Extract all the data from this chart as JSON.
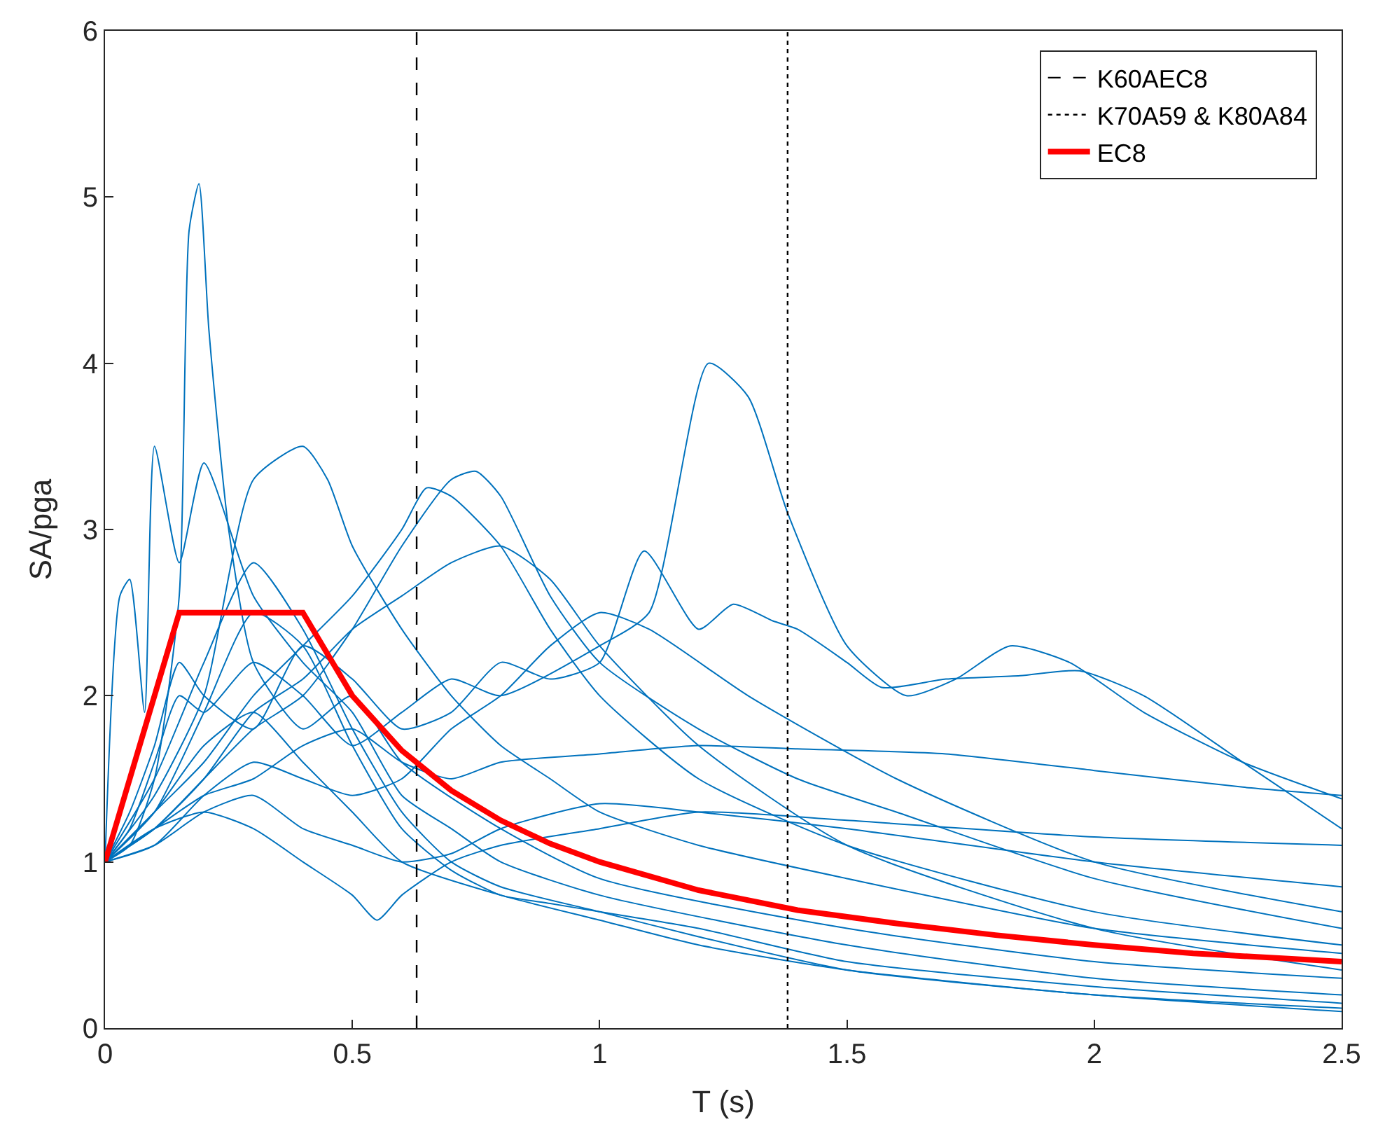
{
  "chart_data": {
    "type": "line",
    "xlabel": "T (s)",
    "ylabel": "SA/pga",
    "xlim": [
      0,
      2.5
    ],
    "ylim": [
      0,
      6
    ],
    "xticks": [
      0,
      {
        "value": 0.5,
        "label": "0.5"
      },
      1,
      {
        "value": 1.5,
        "label": "1.5"
      },
      2,
      {
        "value": 2.5,
        "label": "2.5"
      }
    ],
    "yticks": [
      0,
      1,
      2,
      3,
      4,
      5,
      6
    ],
    "legend": "top right",
    "marker": "none",
    "line_style": "solid",
    "series": [
      {
        "color": "#0072bd",
        "x": [
          0,
          0.05,
          0.1,
          0.15,
          0.2,
          0.3,
          0.4,
          0.5,
          0.6,
          0.7,
          0.8,
          1.0,
          1.1,
          1.22,
          1.3,
          1.38,
          1.5,
          1.62,
          1.72,
          1.83,
          1.95,
          2.1,
          2.3,
          2.5
        ],
        "values": [
          1,
          1.2,
          1.6,
          2.0,
          1.9,
          2.2,
          2.0,
          1.7,
          1.9,
          2.1,
          2.0,
          2.3,
          2.5,
          4.0,
          3.8,
          3.1,
          2.3,
          2.0,
          2.1,
          2.3,
          2.2,
          1.9,
          1.6,
          1.38
        ]
      },
      {
        "color": "#0072bd",
        "x": [
          0,
          0.05,
          0.1,
          0.15,
          0.2,
          0.3,
          0.4,
          0.5,
          0.6,
          0.7,
          0.8,
          0.9,
          1.0,
          1.09,
          1.2,
          1.27,
          1.35,
          1.4,
          1.5,
          1.57,
          1.7,
          1.85,
          1.97,
          2.1,
          2.3,
          2.5
        ],
        "values": [
          1,
          1.3,
          1.7,
          2.2,
          2.0,
          1.8,
          2.3,
          2.1,
          1.8,
          1.9,
          2.2,
          2.1,
          2.2,
          2.87,
          2.4,
          2.55,
          2.45,
          2.4,
          2.2,
          2.05,
          2.1,
          2.12,
          2.15,
          2.0,
          1.6,
          1.2
        ]
      },
      {
        "color": "#0072bd",
        "x": [
          0,
          0.05,
          0.1,
          0.15,
          0.17,
          0.19,
          0.21,
          0.25,
          0.3,
          0.4,
          0.5,
          0.6,
          0.8,
          1.0,
          1.5,
          2.0,
          2.5
        ],
        "values": [
          1,
          1.1,
          1.5,
          2.6,
          4.8,
          5.08,
          4.2,
          3.0,
          2.2,
          1.8,
          2.0,
          1.6,
          1.2,
          0.9,
          0.6,
          0.4,
          0.3
        ]
      },
      {
        "color": "#0072bd",
        "x": [
          0,
          0.03,
          0.05,
          0.08,
          0.1,
          0.15,
          0.2,
          0.3,
          0.4,
          0.5,
          0.6,
          0.7,
          0.8,
          1.0,
          1.5,
          2.0,
          2.5
        ],
        "values": [
          1,
          2.6,
          2.7,
          1.9,
          3.5,
          2.8,
          3.4,
          2.6,
          2.2,
          1.9,
          1.4,
          1.2,
          1.0,
          0.8,
          0.5,
          0.3,
          0.2
        ]
      },
      {
        "color": "#0072bd",
        "x": [
          0,
          0.1,
          0.2,
          0.3,
          0.4,
          0.45,
          0.5,
          0.6,
          0.7,
          0.8,
          0.9,
          1.0,
          1.2,
          1.5,
          2.0,
          2.5
        ],
        "values": [
          1,
          1.4,
          2.0,
          3.3,
          3.5,
          3.3,
          2.9,
          2.4,
          2.0,
          1.7,
          1.5,
          1.3,
          1.1,
          0.9,
          0.6,
          0.45
        ]
      },
      {
        "color": "#0072bd",
        "x": [
          0,
          0.1,
          0.2,
          0.3,
          0.4,
          0.5,
          0.6,
          0.7,
          0.75,
          0.8,
          0.9,
          1.0,
          1.2,
          1.4,
          1.6,
          2.0,
          2.5
        ],
        "values": [
          1,
          1.2,
          1.5,
          1.8,
          2.0,
          2.4,
          2.9,
          3.3,
          3.35,
          3.2,
          2.6,
          2.2,
          1.8,
          1.5,
          1.3,
          0.9,
          0.6
        ]
      },
      {
        "color": "#0072bd",
        "x": [
          0,
          0.1,
          0.2,
          0.3,
          0.4,
          0.5,
          0.6,
          0.65,
          0.7,
          0.8,
          0.9,
          1.0,
          1.2,
          1.5,
          2.0,
          2.5
        ],
        "values": [
          1,
          1.3,
          1.6,
          2.0,
          2.3,
          2.6,
          3.0,
          3.25,
          3.2,
          2.9,
          2.4,
          2.0,
          1.5,
          1.1,
          0.7,
          0.5
        ]
      },
      {
        "color": "#0072bd",
        "x": [
          0,
          0.1,
          0.2,
          0.3,
          0.4,
          0.5,
          0.6,
          0.7,
          0.8,
          1.0,
          1.2,
          1.4,
          1.7,
          2.0,
          2.3,
          2.5
        ],
        "values": [
          1,
          1.2,
          1.4,
          1.5,
          1.7,
          1.8,
          1.6,
          1.5,
          1.6,
          1.65,
          1.7,
          1.68,
          1.65,
          1.55,
          1.45,
          1.4
        ]
      },
      {
        "color": "#0072bd",
        "x": [
          0,
          0.1,
          0.2,
          0.3,
          0.4,
          0.5,
          0.55,
          0.6,
          0.7,
          0.8,
          1.0,
          1.2,
          1.5,
          2.0,
          2.5
        ],
        "values": [
          1,
          1.2,
          1.3,
          1.2,
          1.0,
          0.8,
          0.65,
          0.8,
          1.0,
          1.1,
          1.2,
          1.3,
          1.25,
          1.15,
          1.1
        ]
      },
      {
        "color": "#0072bd",
        "x": [
          0,
          0.1,
          0.2,
          0.3,
          0.4,
          0.5,
          0.6,
          0.7,
          0.8,
          0.9,
          1.0,
          1.2,
          1.5,
          2.0,
          2.5
        ],
        "values": [
          1,
          1.3,
          1.9,
          2.5,
          2.3,
          1.7,
          1.2,
          0.95,
          0.8,
          0.75,
          0.7,
          0.6,
          0.4,
          0.25,
          0.15
        ]
      },
      {
        "color": "#0072bd",
        "x": [
          0,
          0.1,
          0.2,
          0.3,
          0.4,
          0.5,
          0.6,
          0.7,
          0.8,
          0.9,
          1.0,
          1.1,
          1.3,
          1.6,
          2.0,
          2.5
        ],
        "values": [
          1,
          1.1,
          1.4,
          1.6,
          1.5,
          1.4,
          1.5,
          1.8,
          2.0,
          2.3,
          2.5,
          2.4,
          2.0,
          1.5,
          1.0,
          0.7
        ]
      },
      {
        "color": "#0072bd",
        "x": [
          0,
          0.1,
          0.2,
          0.3,
          0.4,
          0.5,
          0.6,
          0.7,
          0.8,
          1.0,
          1.2,
          1.5,
          2.0,
          2.5
        ],
        "values": [
          1,
          1.5,
          2.2,
          2.8,
          2.4,
          1.8,
          1.3,
          1.0,
          0.85,
          0.7,
          0.55,
          0.35,
          0.2,
          0.1
        ]
      },
      {
        "color": "#0072bd",
        "x": [
          0,
          0.1,
          0.2,
          0.3,
          0.4,
          0.5,
          0.6,
          0.7,
          0.8,
          1.0,
          1.2,
          1.5,
          2.0,
          2.5
        ],
        "values": [
          1,
          1.1,
          1.3,
          1.4,
          1.2,
          1.1,
          1.0,
          1.05,
          1.2,
          1.35,
          1.3,
          1.2,
          1.0,
          0.85
        ]
      },
      {
        "color": "#0072bd",
        "x": [
          0,
          0.1,
          0.2,
          0.3,
          0.4,
          0.5,
          0.6,
          0.7,
          0.8,
          0.9,
          1.0,
          1.2,
          1.5,
          2.0,
          2.5
        ],
        "values": [
          1,
          1.2,
          1.5,
          1.9,
          2.1,
          2.4,
          2.6,
          2.8,
          2.9,
          2.7,
          2.3,
          1.7,
          1.1,
          0.6,
          0.35
        ]
      },
      {
        "color": "#0072bd",
        "x": [
          0,
          0.1,
          0.2,
          0.3,
          0.4,
          0.5,
          0.6,
          0.8,
          1.0,
          1.2,
          1.5,
          2.0,
          2.5
        ],
        "values": [
          1,
          1.3,
          1.7,
          1.9,
          1.6,
          1.3,
          1.0,
          0.8,
          0.65,
          0.5,
          0.35,
          0.2,
          0.12
        ]
      },
      {
        "name": "K60AEC8",
        "color": "#000000",
        "line_style": "dashed",
        "x": [
          0.63,
          0.63
        ],
        "values": [
          0,
          6
        ]
      },
      {
        "name": "K70A59 & K80A84",
        "color": "#000000",
        "line_style": "dotted",
        "x": [
          1.38,
          1.38
        ],
        "values": [
          0,
          6
        ]
      },
      {
        "name": "EC8",
        "color": "#ff0000",
        "x": [
          0,
          0.15,
          0.4,
          0.5,
          0.6,
          0.7,
          0.8,
          0.9,
          1.0,
          1.2,
          1.4,
          1.6,
          1.8,
          2.0,
          2.2,
          2.5
        ],
        "values": [
          1,
          2.5,
          2.5,
          2.0,
          1.67,
          1.43,
          1.25,
          1.11,
          1.0,
          0.83,
          0.71,
          0.63,
          0.56,
          0.5,
          0.45,
          0.4
        ]
      }
    ]
  }
}
